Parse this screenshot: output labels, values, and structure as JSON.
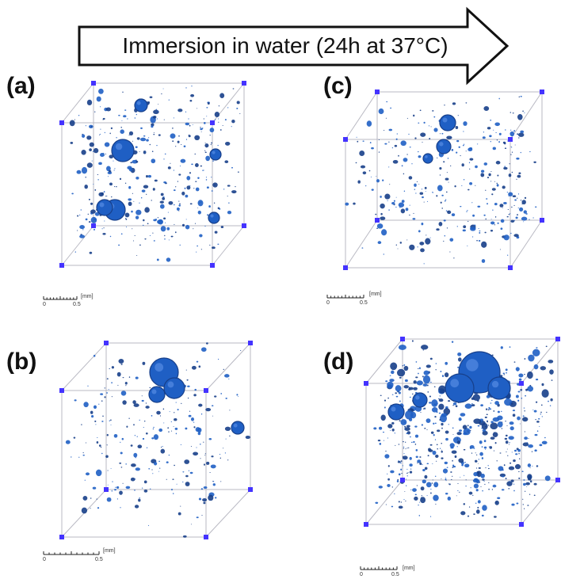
{
  "header": {
    "arrow_text": "Immersion in water (24h at 37°C)"
  },
  "panels": [
    {
      "label": "(a)",
      "scale_unit": "[mm]",
      "scale_start": "0",
      "scale_end": "0.5"
    },
    {
      "label": "(b)",
      "scale_unit": "[mm]",
      "scale_start": "0",
      "scale_end": "0.5"
    },
    {
      "label": "(c)",
      "scale_unit": "[mm]",
      "scale_start": "0",
      "scale_end": "0.5"
    },
    {
      "label": "(d)",
      "scale_unit": "[mm]",
      "scale_start": "0",
      "scale_end": "0.5"
    }
  ],
  "colors": {
    "pore_fill": "#1f5fc4",
    "pore_dark": "#173f8a",
    "corner_marker": "#4433ff",
    "cube_edge": "#b9b9c3"
  }
}
